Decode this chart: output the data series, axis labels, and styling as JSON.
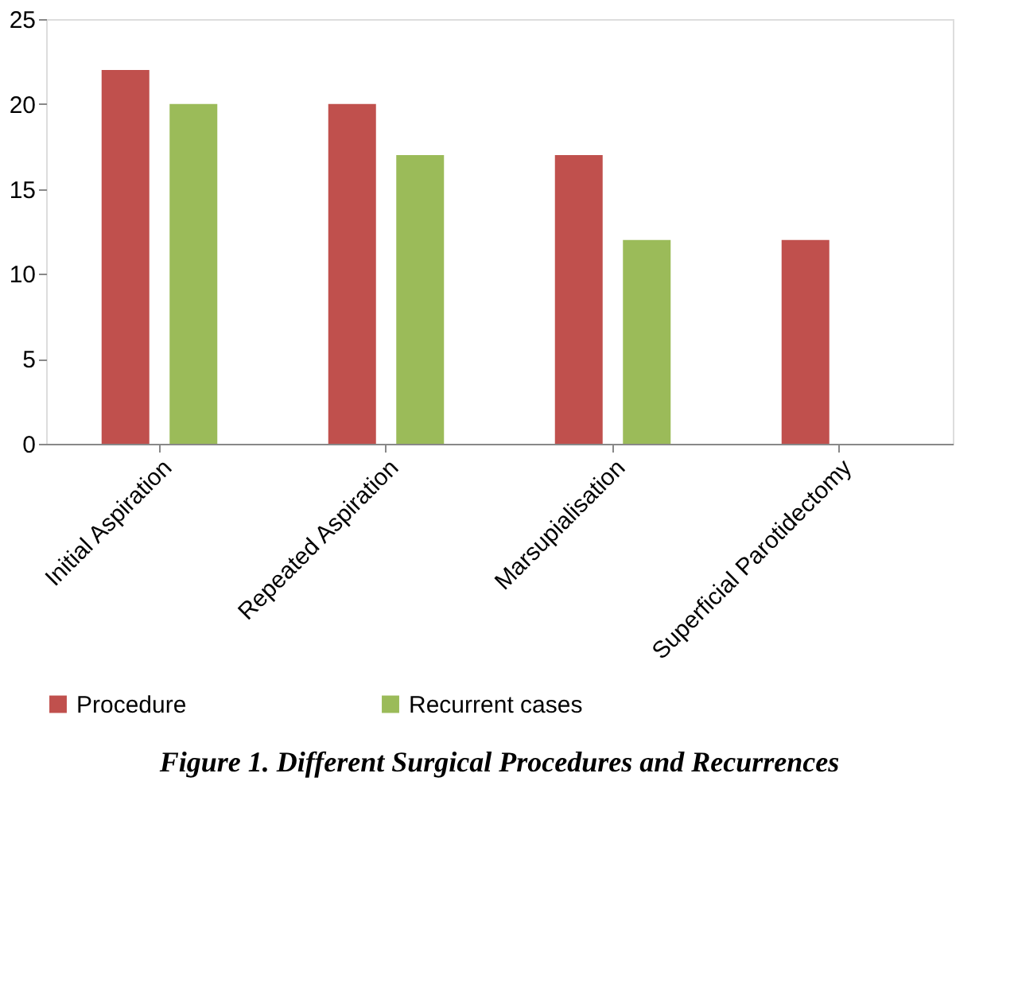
{
  "chart_data": {
    "type": "bar",
    "title": "Figure 1. Different Surgical Procedures and Recurrences",
    "categories": [
      "Initial Aspiration",
      "Repeated Aspiration",
      "Marsupialisation",
      "Superficial Parotidectomy"
    ],
    "series": [
      {
        "name": "Procedure",
        "color": "#c0504d",
        "values": [
          22,
          20,
          17,
          12
        ]
      },
      {
        "name": "Recurrent cases",
        "color": "#9bbb59",
        "values": [
          20,
          17,
          12,
          null
        ]
      }
    ],
    "ylim": [
      0,
      25
    ],
    "yticks": [
      0,
      5,
      10,
      15,
      20,
      25
    ],
    "grid": false,
    "legend": "bottom"
  }
}
